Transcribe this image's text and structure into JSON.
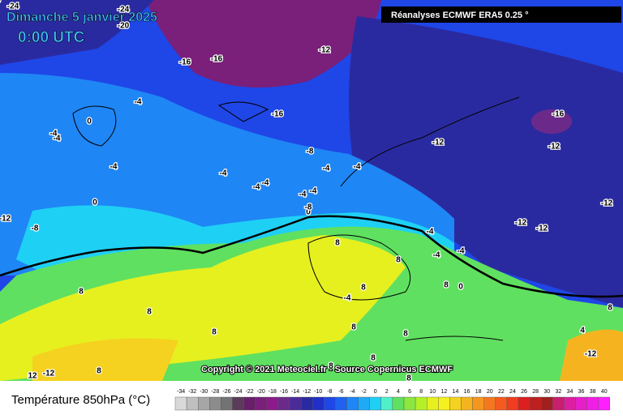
{
  "header": {
    "date": "Dimanche 5 janvier 2025",
    "time": "0:00 UTC",
    "source": "Réanalyses ECMWF ERA5 0.25 °"
  },
  "copyright": "Copyright © 2021 Meteociel.fr - Source Copernicus ECMWF",
  "legend": {
    "title": "Température 850hPa (°C)",
    "values": [
      -34,
      -32,
      -30,
      -28,
      -26,
      -24,
      -22,
      -20,
      -18,
      -16,
      -14,
      -12,
      -10,
      -8,
      -6,
      -4,
      -2,
      0,
      2,
      4,
      6,
      8,
      10,
      12,
      14,
      16,
      18,
      20,
      22,
      24,
      26,
      28,
      30,
      32,
      34,
      36,
      38,
      40
    ],
    "colors": [
      "#d9d9d9",
      "#bfbfbf",
      "#a6a6a6",
      "#8c8c8c",
      "#737373",
      "#5a3c5a",
      "#6a1f6a",
      "#7a1f7a",
      "#8c1a8c",
      "#6b2a8a",
      "#4b2a9a",
      "#2a2aa0",
      "#1f2fc8",
      "#1f46e6",
      "#1f62f0",
      "#1f86f5",
      "#1faaf5",
      "#1fd0f5",
      "#50f0c8",
      "#60e060",
      "#8ce640",
      "#b4f028",
      "#e6f01f",
      "#f5f01f",
      "#f5d21f",
      "#f5b41f",
      "#f5961f",
      "#f5781f",
      "#f55a1f",
      "#f03c1f",
      "#dc1f1f",
      "#be1f1f",
      "#a01f1f",
      "#c81f6e",
      "#dc1fa0",
      "#e61fc8",
      "#f01fe6",
      "#ff1fff"
    ]
  },
  "contour_labels": [
    -24,
    -24,
    -20,
    -16,
    -16,
    -12,
    -4,
    0,
    -4,
    -4,
    -4,
    -16,
    -8,
    -12,
    -16,
    -12,
    -4,
    -4,
    -4,
    -4,
    -4,
    -4,
    -4,
    0,
    -12,
    -8,
    -12,
    -12,
    -12,
    -4,
    -4,
    -4,
    -8,
    0,
    8,
    8,
    8,
    8,
    8,
    -4,
    8,
    8,
    8,
    8,
    8,
    -4,
    8,
    8,
    4,
    -12,
    0,
    12,
    -12,
    8,
    8
  ]
}
